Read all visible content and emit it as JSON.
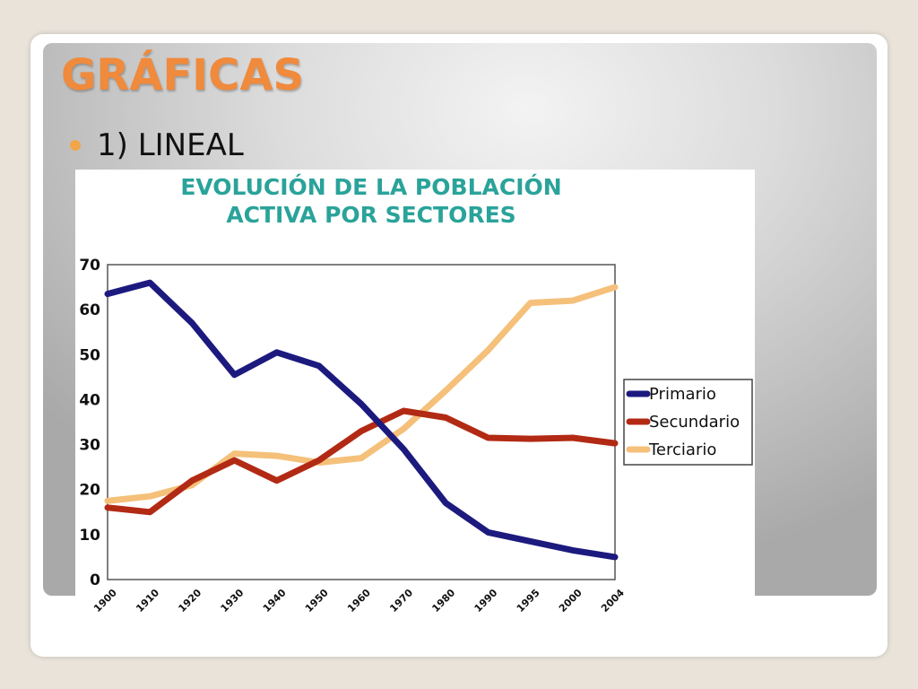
{
  "slide": {
    "title": "GRÁFICAS",
    "bullet": "1) LINEAL"
  },
  "colors": {
    "title": "#f08a3c",
    "bullet": "#f2a64a",
    "chart_title": "#2aa39a"
  },
  "chart_data": {
    "type": "line",
    "title_lines": [
      "EVOLUCIÓN DE LA POBLACIÓN",
      "ACTIVA POR SECTORES"
    ],
    "categories": [
      "1900",
      "1910",
      "1920",
      "1930",
      "1940",
      "1950",
      "1960",
      "1970",
      "1980",
      "1990",
      "1995",
      "2000",
      "2004"
    ],
    "ylim": [
      0,
      70
    ],
    "yticks": [
      0,
      10,
      20,
      30,
      40,
      50,
      60,
      70
    ],
    "grid": true,
    "legend_position": "right",
    "series": [
      {
        "name": "Primario",
        "color": "#1c1a7e",
        "values": [
          63.5,
          66,
          57,
          45.5,
          50.5,
          47.5,
          39,
          29,
          17,
          10.5,
          8.5,
          6.5,
          5
        ]
      },
      {
        "name": "Secundario",
        "color": "#b22a14",
        "values": [
          16,
          15,
          22,
          26.5,
          22,
          26.5,
          33,
          37.5,
          36,
          31.5,
          31.3,
          31.5,
          30.3
        ]
      },
      {
        "name": "Terciario",
        "color": "#f5c07a",
        "values": [
          17.5,
          18.5,
          21,
          28,
          27.5,
          26,
          27,
          33.5,
          42,
          51,
          61.5,
          62,
          65
        ]
      }
    ]
  }
}
